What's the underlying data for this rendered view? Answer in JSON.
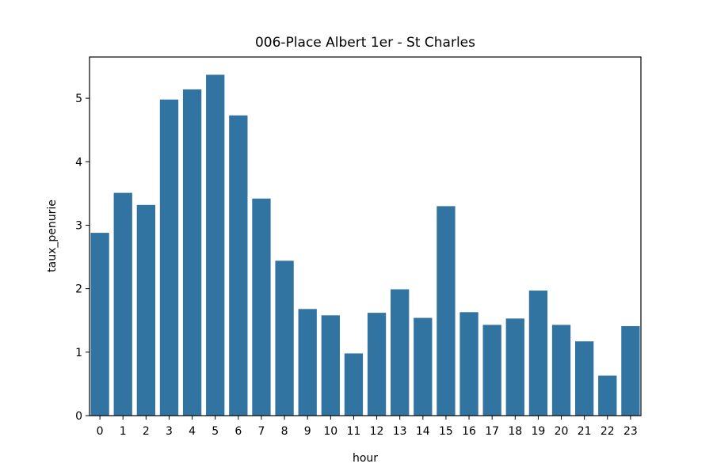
{
  "chart_data": {
    "type": "bar",
    "title": "006-Place Albert 1er - St Charles",
    "xlabel": "hour",
    "ylabel": "taux_penurie",
    "categories": [
      "0",
      "1",
      "2",
      "3",
      "4",
      "5",
      "6",
      "7",
      "8",
      "9",
      "10",
      "11",
      "12",
      "13",
      "14",
      "15",
      "16",
      "17",
      "18",
      "19",
      "20",
      "21",
      "22",
      "23"
    ],
    "values": [
      2.88,
      3.51,
      3.32,
      4.98,
      5.14,
      5.37,
      4.73,
      3.42,
      2.44,
      1.68,
      1.58,
      0.98,
      1.62,
      1.99,
      1.54,
      3.3,
      1.63,
      1.43,
      1.53,
      1.97,
      1.43,
      1.17,
      0.63,
      1.41
    ],
    "ylim": [
      0,
      5.65
    ],
    "yticks": [
      0,
      1,
      2,
      3,
      4,
      5
    ],
    "bar_color": "#3274a1",
    "grid": false,
    "legend": "none"
  }
}
